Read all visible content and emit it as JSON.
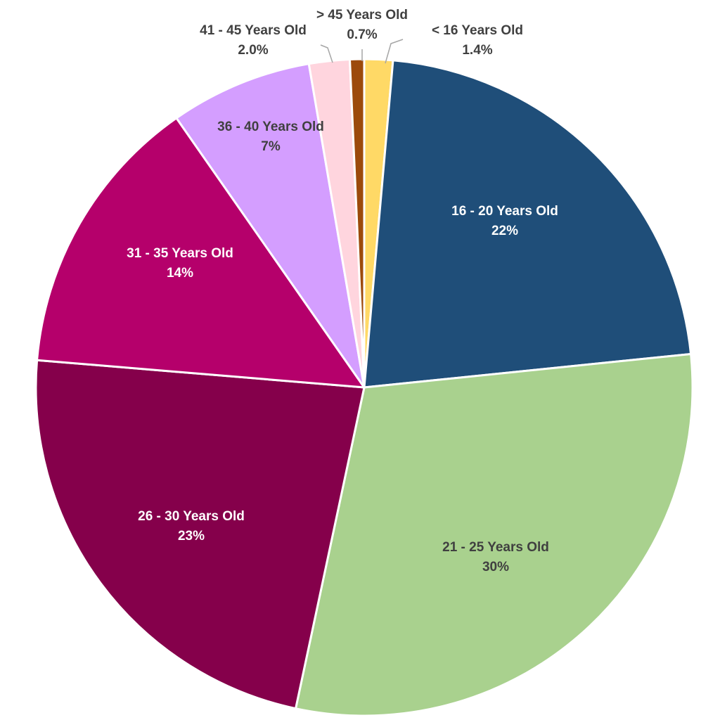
{
  "chart_data": {
    "type": "pie",
    "title": "",
    "start_angle_deg": 0,
    "direction": "clockwise",
    "slices": [
      {
        "label": "< 16 Years Old",
        "value": 1.4,
        "value_label": "1.4%",
        "color": "#FFD966",
        "label_color": "#404040"
      },
      {
        "label": "16 - 20 Years Old",
        "value": 22,
        "value_label": "22%",
        "color": "#1F4E79",
        "label_color": "#FFFFFF"
      },
      {
        "label": "21 - 25 Years Old",
        "value": 30,
        "value_label": "30%",
        "color": "#A9D18E",
        "label_color": "#404040"
      },
      {
        "label": "26 - 30 Years Old",
        "value": 23,
        "value_label": "23%",
        "color": "#85004B",
        "label_color": "#FFFFFF"
      },
      {
        "label": "31 - 35 Years Old",
        "value": 14,
        "value_label": "14%",
        "color": "#B5006B",
        "label_color": "#FFFFFF"
      },
      {
        "label": "36 - 40 Years Old",
        "value": 7,
        "value_label": "7%",
        "color": "#D49EFF",
        "label_color": "#404040"
      },
      {
        "label": "41 - 45 Years Old",
        "value": 2.0,
        "value_label": "2.0%",
        "color": "#FFD5DE",
        "label_color": "#404040"
      },
      {
        "label": "> 45 Years Old",
        "value": 0.7,
        "value_label": "0.7%",
        "color": "#9C4A0B",
        "label_color": "#404040"
      }
    ]
  }
}
